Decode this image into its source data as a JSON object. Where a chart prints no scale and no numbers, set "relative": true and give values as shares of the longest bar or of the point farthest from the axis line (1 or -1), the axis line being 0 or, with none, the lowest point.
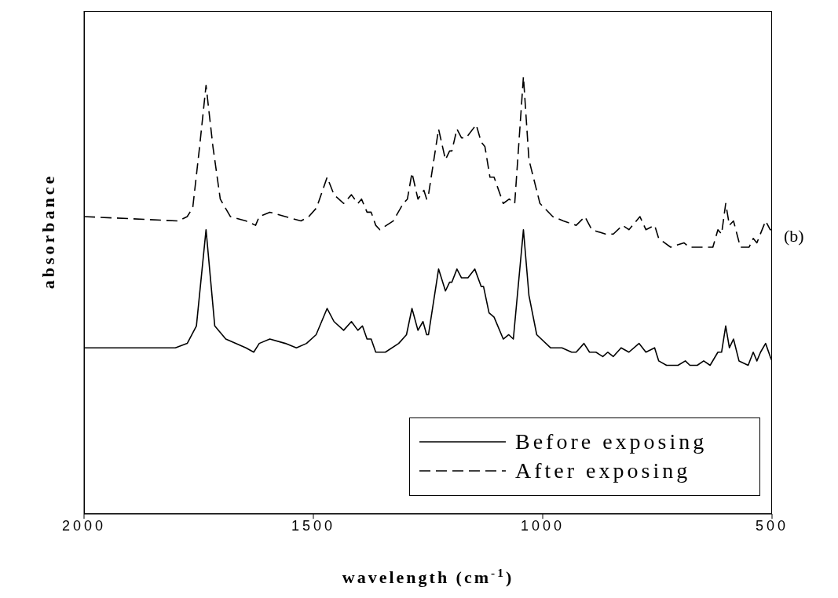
{
  "chart_data": {
    "type": "line",
    "relative": true,
    "xlabel": "wavelength (cm$^{-1}$)",
    "ylabel": "absorbance",
    "annotations": [
      "(b)"
    ],
    "xlim": [
      2000,
      500
    ],
    "xticks": [
      2000,
      1500,
      1000,
      500
    ],
    "legend": "bottom right",
    "grid": false,
    "marker": "none",
    "series": [
      {
        "name": "Before exposing",
        "color": "#000000",
        "line_style": "solid",
        "x": [
          2000,
          1801,
          1775,
          1755,
          1734,
          1715,
          1691,
          1647,
          1630,
          1618,
          1595,
          1561,
          1537,
          1515,
          1494,
          1470,
          1455,
          1434,
          1417,
          1403,
          1393,
          1383,
          1374,
          1364,
          1343,
          1314,
          1297,
          1285,
          1272,
          1261,
          1253,
          1249,
          1227,
          1212,
          1203,
          1198,
          1187,
          1177,
          1163,
          1148,
          1134,
          1129,
          1117,
          1106,
          1086,
          1074,
          1064,
          1042,
          1030,
          1013,
          983,
          970,
          958,
          937,
          927,
          910,
          898,
          884,
          869,
          858,
          846,
          829,
          812,
          790,
          775,
          756,
          747,
          730,
          715,
          705,
          689,
          679,
          663,
          649,
          635,
          618,
          610,
          601,
          593,
          584,
          572,
          552,
          541,
          533,
          525,
          514,
          504,
          500
        ],
        "values": [
          0.38,
          0.38,
          0.39,
          0.43,
          0.65,
          0.43,
          0.4,
          0.38,
          0.37,
          0.39,
          0.4,
          0.39,
          0.38,
          0.39,
          0.41,
          0.47,
          0.44,
          0.42,
          0.44,
          0.42,
          0.43,
          0.4,
          0.4,
          0.37,
          0.37,
          0.39,
          0.41,
          0.47,
          0.42,
          0.44,
          0.41,
          0.41,
          0.56,
          0.51,
          0.53,
          0.53,
          0.56,
          0.54,
          0.54,
          0.56,
          0.52,
          0.52,
          0.46,
          0.45,
          0.4,
          0.41,
          0.4,
          0.65,
          0.5,
          0.41,
          0.38,
          0.38,
          0.38,
          0.37,
          0.37,
          0.39,
          0.37,
          0.37,
          0.36,
          0.37,
          0.36,
          0.38,
          0.37,
          0.39,
          0.37,
          0.38,
          0.35,
          0.34,
          0.34,
          0.34,
          0.35,
          0.34,
          0.34,
          0.35,
          0.34,
          0.37,
          0.37,
          0.43,
          0.38,
          0.4,
          0.35,
          0.34,
          0.37,
          0.35,
          0.37,
          0.39,
          0.36,
          0.35
        ]
      },
      {
        "name": "After exposing",
        "color": "#000000",
        "line_style": "dashed",
        "x": [
          2000,
          1794,
          1775,
          1763,
          1748,
          1734,
          1719,
          1703,
          1681,
          1647,
          1626,
          1618,
          1595,
          1561,
          1527,
          1510,
          1493,
          1470,
          1455,
          1434,
          1417,
          1403,
          1395,
          1383,
          1374,
          1364,
          1355,
          1326,
          1304,
          1295,
          1285,
          1272,
          1259,
          1253,
          1249,
          1227,
          1212,
          1203,
          1198,
          1187,
          1177,
          1167,
          1145,
          1134,
          1126,
          1115,
          1106,
          1086,
          1073,
          1061,
          1042,
          1030,
          1006,
          978,
          955,
          927,
          908,
          893,
          863,
          846,
          826,
          812,
          788,
          775,
          756,
          747,
          721,
          692,
          680,
          652,
          629,
          618,
          610,
          601,
          593,
          584,
          569,
          550,
          541,
          533,
          514,
          504,
          500
        ],
        "values": [
          0.68,
          0.67,
          0.68,
          0.7,
          0.84,
          0.98,
          0.84,
          0.72,
          0.68,
          0.67,
          0.66,
          0.68,
          0.69,
          0.68,
          0.67,
          0.68,
          0.7,
          0.77,
          0.73,
          0.71,
          0.73,
          0.71,
          0.72,
          0.69,
          0.69,
          0.66,
          0.65,
          0.67,
          0.71,
          0.72,
          0.78,
          0.72,
          0.74,
          0.72,
          0.73,
          0.88,
          0.81,
          0.83,
          0.83,
          0.88,
          0.86,
          0.86,
          0.89,
          0.85,
          0.84,
          0.77,
          0.77,
          0.71,
          0.72,
          0.71,
          1.0,
          0.81,
          0.71,
          0.68,
          0.67,
          0.66,
          0.68,
          0.65,
          0.64,
          0.64,
          0.66,
          0.65,
          0.68,
          0.65,
          0.66,
          0.63,
          0.61,
          0.62,
          0.61,
          0.61,
          0.61,
          0.65,
          0.64,
          0.71,
          0.66,
          0.67,
          0.61,
          0.61,
          0.63,
          0.62,
          0.67,
          0.65,
          0.65
        ]
      }
    ]
  }
}
